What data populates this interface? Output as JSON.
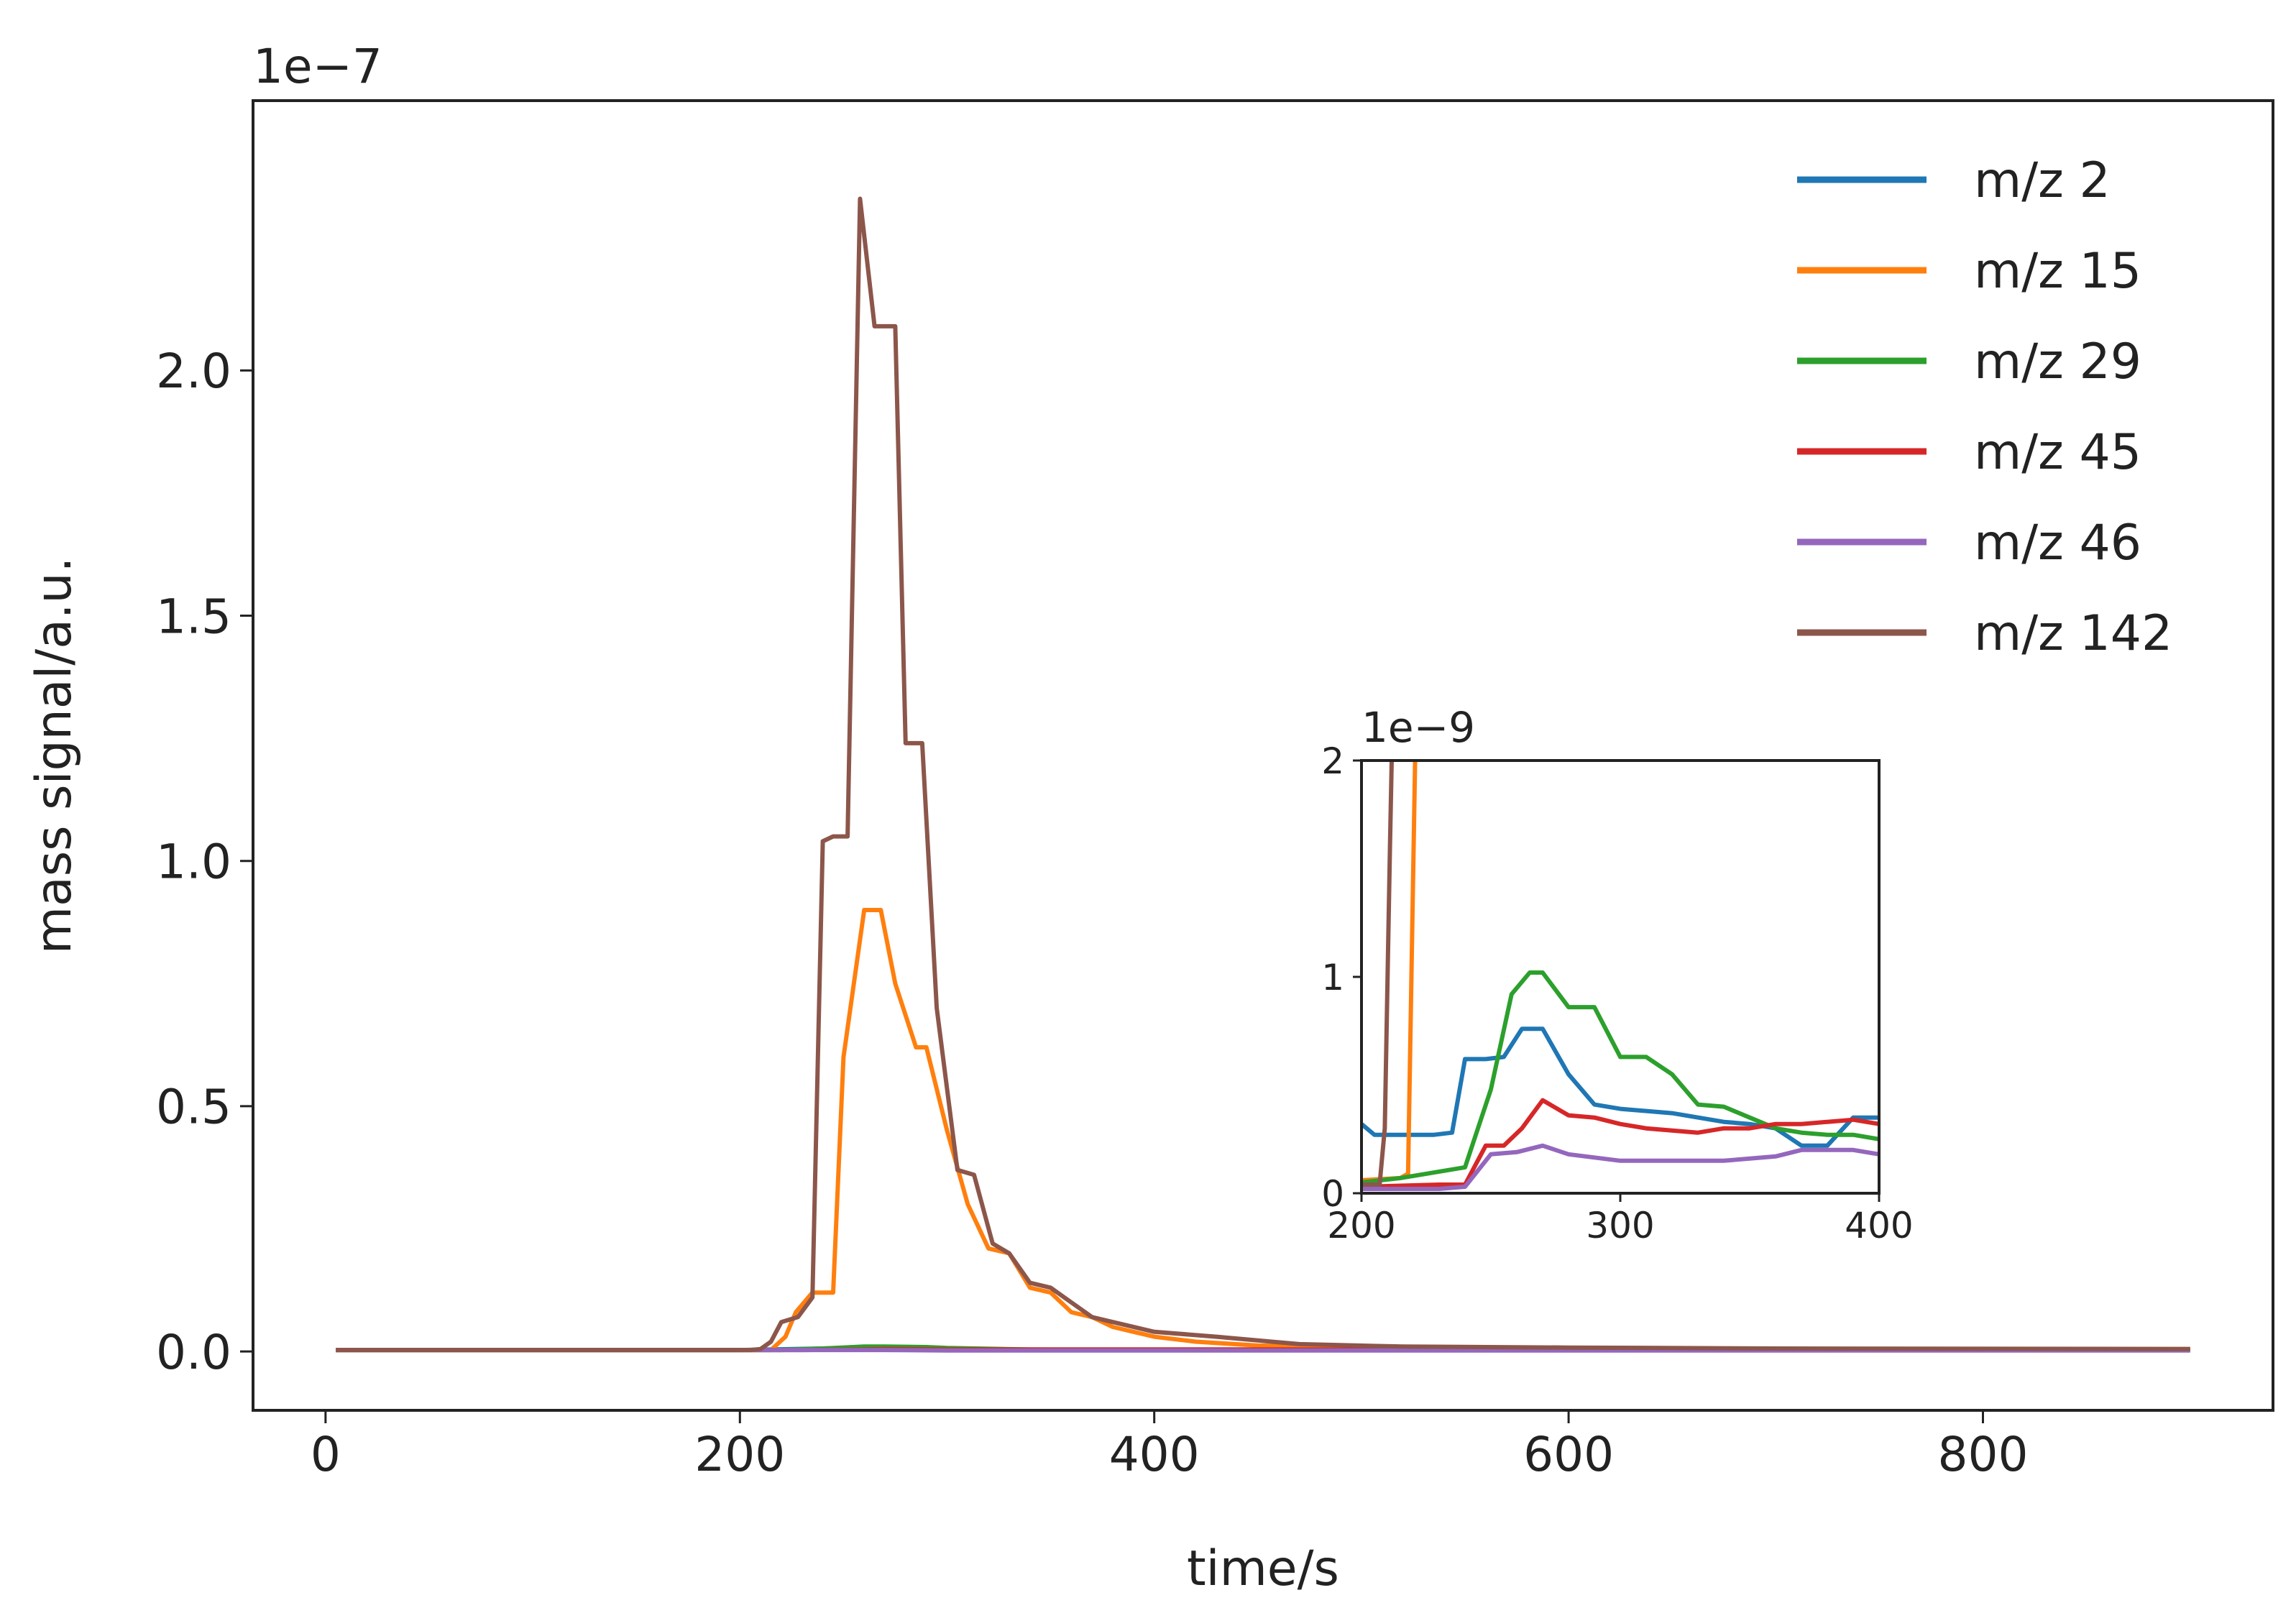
{
  "chart_data": [
    {
      "type": "line",
      "title": "",
      "xlabel": "time/s",
      "ylabel": "mass signal/a.u.",
      "y_offset_label": "1e−7",
      "y_scale_exponent": -7,
      "xlim": [
        -35,
        940
      ],
      "ylim": [
        -0.12,
        2.55
      ],
      "xticks": [
        0,
        200,
        400,
        600,
        800
      ],
      "yticks": [
        0.0,
        0.5,
        1.0,
        1.5,
        2.0
      ],
      "xtick_labels": [
        "0",
        "200",
        "400",
        "600",
        "800"
      ],
      "ytick_labels": [
        "0.0",
        "0.5",
        "1.0",
        "1.5",
        "2.0"
      ],
      "grid": false,
      "legend_position": "top-right",
      "series": [
        {
          "name": "m/z 2",
          "color": "#1f77b4",
          "x": [
            5,
            200,
            240,
            260,
            300,
            400,
            500,
            900
          ],
          "y": [
            0.003,
            0.003,
            0.006,
            0.008,
            0.004,
            0.004,
            0.004,
            0.004
          ]
        },
        {
          "name": "m/z 15",
          "color": "#ff7f0e",
          "x": [
            5,
            215,
            222,
            227,
            235,
            245,
            250,
            260,
            268,
            275,
            285,
            290,
            300,
            310,
            320,
            330,
            340,
            350,
            360,
            370,
            380,
            390,
            400,
            420,
            450,
            500,
            550,
            600,
            900
          ],
          "y": [
            0.003,
            0.003,
            0.03,
            0.08,
            0.12,
            0.12,
            0.6,
            0.9,
            0.9,
            0.75,
            0.62,
            0.62,
            0.45,
            0.3,
            0.21,
            0.2,
            0.13,
            0.12,
            0.08,
            0.07,
            0.05,
            0.04,
            0.03,
            0.02,
            0.012,
            0.008,
            0.006,
            0.005,
            0.005
          ]
        },
        {
          "name": "m/z 29",
          "color": "#2ca02c",
          "x": [
            5,
            220,
            240,
            260,
            270,
            290,
            300,
            340,
            400,
            900
          ],
          "y": [
            0.003,
            0.003,
            0.006,
            0.01,
            0.01,
            0.009,
            0.007,
            0.004,
            0.003,
            0.003
          ]
        },
        {
          "name": "m/z 45",
          "color": "#d62728",
          "x": [
            5,
            230,
            260,
            270,
            300,
            400,
            900
          ],
          "y": [
            0.003,
            0.003,
            0.004,
            0.005,
            0.004,
            0.004,
            0.004
          ]
        },
        {
          "name": "m/z 46",
          "color": "#9467bd",
          "x": [
            5,
            240,
            270,
            300,
            400,
            900
          ],
          "y": [
            0.003,
            0.003,
            0.003,
            0.002,
            0.002,
            0.002
          ]
        },
        {
          "name": "m/z 142",
          "color": "#8c564b",
          "x": [
            5,
            205,
            210,
            215,
            220,
            228,
            235,
            240,
            245,
            252,
            258,
            265,
            275,
            280,
            288,
            295,
            305,
            313,
            322,
            330,
            340,
            350,
            360,
            370,
            380,
            400,
            430,
            470,
            520,
            600,
            700,
            900
          ],
          "y": [
            0.003,
            0.003,
            0.005,
            0.02,
            0.06,
            0.07,
            0.11,
            1.04,
            1.05,
            1.05,
            2.35,
            2.09,
            2.09,
            1.24,
            1.24,
            0.7,
            0.37,
            0.36,
            0.22,
            0.2,
            0.14,
            0.13,
            0.1,
            0.07,
            0.06,
            0.04,
            0.03,
            0.015,
            0.01,
            0.008,
            0.006,
            0.005
          ]
        }
      ]
    },
    {
      "type": "line",
      "title": "",
      "inset": true,
      "y_offset_label": "1e−9",
      "y_scale_exponent": -9,
      "xlim": [
        200,
        400
      ],
      "ylim": [
        0,
        2
      ],
      "xticks": [
        200,
        300,
        400
      ],
      "yticks": [
        0,
        1,
        2
      ],
      "xtick_labels": [
        "200",
        "300",
        "400"
      ],
      "ytick_labels": [
        "0",
        "1",
        "2"
      ],
      "series": [
        {
          "name": "m/z 2",
          "color": "#1f77b4",
          "x": [
            200,
            205,
            212,
            220,
            228,
            235,
            240,
            248,
            255,
            262,
            270,
            280,
            290,
            300,
            320,
            340,
            350,
            360,
            370,
            380,
            390,
            400
          ],
          "y": [
            0.32,
            0.27,
            0.27,
            0.27,
            0.27,
            0.28,
            0.62,
            0.62,
            0.63,
            0.76,
            0.76,
            0.55,
            0.41,
            0.39,
            0.37,
            0.33,
            0.32,
            0.3,
            0.22,
            0.22,
            0.35,
            0.35
          ]
        },
        {
          "name": "m/z 15",
          "color": "#ff7f0e",
          "x": [
            200,
            215,
            218,
            220,
            221
          ],
          "y": [
            0.06,
            0.07,
            0.09,
            1.5,
            2.2
          ]
        },
        {
          "name": "m/z 29",
          "color": "#2ca02c",
          "x": [
            200,
            215,
            230,
            240,
            250,
            258,
            265,
            270,
            280,
            290,
            300,
            310,
            320,
            330,
            340,
            350,
            360,
            370,
            380,
            390,
            400
          ],
          "y": [
            0.05,
            0.07,
            0.1,
            0.12,
            0.48,
            0.92,
            1.02,
            1.02,
            0.86,
            0.86,
            0.63,
            0.63,
            0.55,
            0.41,
            0.4,
            0.35,
            0.3,
            0.28,
            0.27,
            0.27,
            0.25
          ]
        },
        {
          "name": "m/z 45",
          "color": "#d62728",
          "x": [
            200,
            230,
            240,
            248,
            255,
            262,
            270,
            280,
            290,
            300,
            310,
            320,
            330,
            340,
            350,
            360,
            370,
            380,
            390,
            400
          ],
          "y": [
            0.03,
            0.04,
            0.04,
            0.22,
            0.22,
            0.3,
            0.43,
            0.36,
            0.35,
            0.32,
            0.3,
            0.29,
            0.28,
            0.3,
            0.3,
            0.32,
            0.32,
            0.33,
            0.34,
            0.32
          ]
        },
        {
          "name": "m/z 46",
          "color": "#9467bd",
          "x": [
            200,
            230,
            240,
            250,
            260,
            270,
            280,
            300,
            320,
            340,
            350,
            360,
            370,
            390,
            400
          ],
          "y": [
            0.02,
            0.02,
            0.03,
            0.18,
            0.19,
            0.22,
            0.18,
            0.15,
            0.15,
            0.15,
            0.16,
            0.17,
            0.2,
            0.2,
            0.18
          ]
        },
        {
          "name": "m/z 142",
          "color": "#8c564b",
          "x": [
            200,
            207,
            209,
            211,
            212
          ],
          "y": [
            0.04,
            0.04,
            0.3,
            1.6,
            2.2
          ]
        }
      ]
    }
  ]
}
